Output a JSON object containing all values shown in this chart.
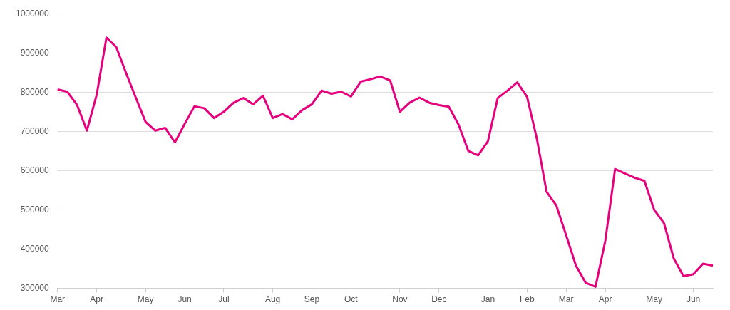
{
  "chart_data": {
    "type": "line",
    "categories": [
      "Mar",
      null,
      null,
      null,
      "Apr",
      null,
      null,
      null,
      null,
      "May",
      null,
      null,
      null,
      "Jun",
      null,
      null,
      null,
      "Jul",
      null,
      null,
      null,
      null,
      "Aug",
      null,
      null,
      null,
      "Sep",
      null,
      null,
      null,
      "Oct",
      null,
      null,
      null,
      null,
      "Nov",
      null,
      null,
      null,
      "Dec",
      null,
      null,
      null,
      null,
      "Jan",
      null,
      null,
      null,
      "Feb",
      null,
      null,
      null,
      "Mar",
      null,
      null,
      null,
      "Apr",
      null,
      null,
      null,
      null,
      "May",
      null,
      null,
      null,
      "Jun",
      null,
      null
    ],
    "series": [
      {
        "color": "#e6007e",
        "values": [
          807000,
          801000,
          767000,
          702000,
          793000,
          939000,
          915000,
          849000,
          786000,
          724000,
          702000,
          709000,
          672000,
          719000,
          764000,
          759000,
          734000,
          750000,
          773000,
          785000,
          769000,
          791000,
          734000,
          744000,
          731000,
          754000,
          769000,
          804000,
          796000,
          801000,
          789000,
          827000,
          833000,
          840000,
          830000,
          750000,
          773000,
          786000,
          773000,
          767000,
          763000,
          717000,
          650000,
          639000,
          675000,
          785000,
          804000,
          825000,
          788000,
          682000,
          546000,
          511000,
          435000,
          358000,
          314000,
          304000,
          421000,
          604000,
          593000,
          582000,
          574000,
          500000,
          466000,
          376000,
          331000,
          336000,
          363000,
          358000
        ]
      }
    ],
    "ylim": [
      300000,
      1000000
    ],
    "yticks": [
      300000,
      400000,
      500000,
      600000,
      700000,
      800000,
      900000,
      1000000
    ],
    "grid": "y",
    "legend": false,
    "marker": "none",
    "line_style": "solid"
  }
}
